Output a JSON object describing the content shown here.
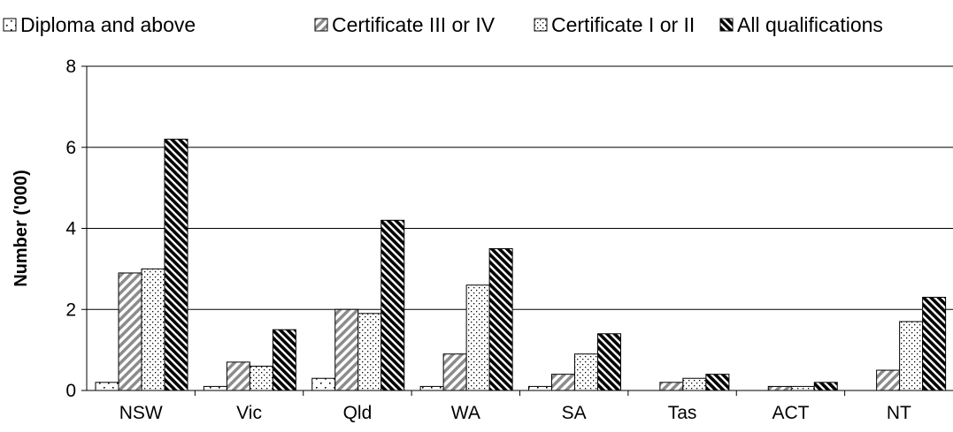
{
  "chart_data": {
    "type": "bar",
    "categories": [
      "NSW",
      "Vic",
      "Qld",
      "WA",
      "SA",
      "Tas",
      "ACT",
      "NT"
    ],
    "series": [
      {
        "name": "Diploma and above",
        "values": [
          0.2,
          0.1,
          0.3,
          0.1,
          0.1,
          0.0,
          0.0,
          0.0
        ]
      },
      {
        "name": "Certificate III or IV",
        "values": [
          2.9,
          0.7,
          2.0,
          0.9,
          0.4,
          0.2,
          0.1,
          0.5
        ]
      },
      {
        "name": "Certificate I or II",
        "values": [
          3.0,
          0.6,
          1.9,
          2.6,
          0.9,
          0.3,
          0.1,
          1.7
        ]
      },
      {
        "name": "All qualifications",
        "values": [
          6.2,
          1.5,
          4.2,
          3.5,
          1.4,
          0.4,
          0.2,
          2.3
        ]
      }
    ],
    "ylabel": "Number ('000)",
    "ylim": [
      0,
      8
    ],
    "yticks": [
      0,
      2,
      4,
      6,
      8
    ],
    "grid": true,
    "legend_position": "top"
  }
}
